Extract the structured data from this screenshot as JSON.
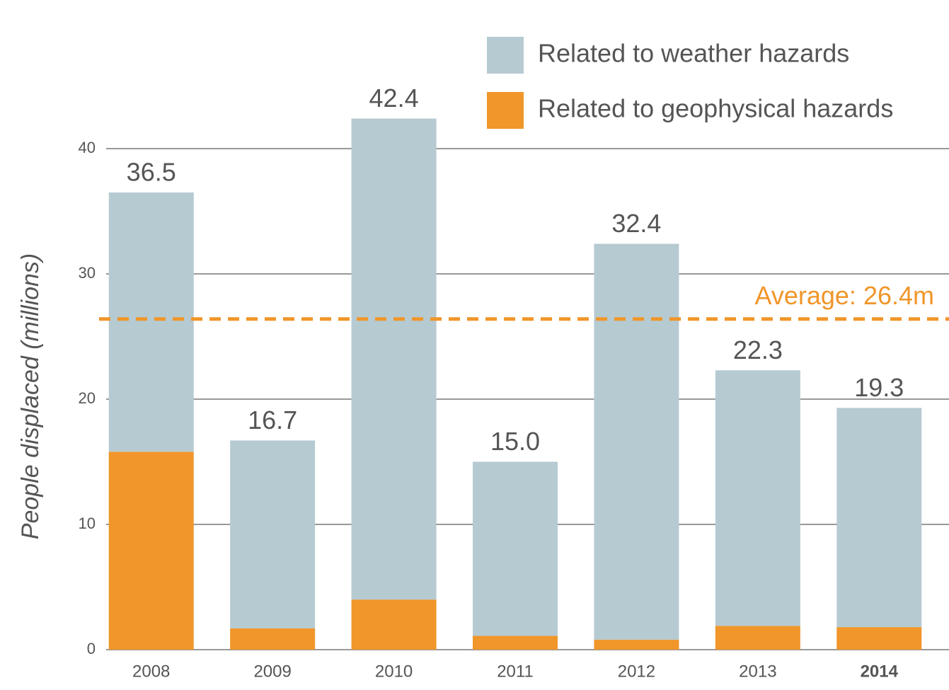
{
  "chart_data": {
    "type": "stacked-bar",
    "y_label": "People displaced (millions)",
    "categories": [
      "2008",
      "2009",
      "2010",
      "2011",
      "2012",
      "2013",
      "2014"
    ],
    "series": [
      {
        "name": "Related to weather hazards",
        "color": "#b6cad2",
        "values": [
          20.7,
          15.0,
          38.4,
          13.9,
          31.6,
          20.4,
          17.5
        ]
      },
      {
        "name": "Related to geophysical hazards",
        "color": "#f0962a",
        "values": [
          15.8,
          1.7,
          4.0,
          1.1,
          0.8,
          1.9,
          1.8
        ]
      }
    ],
    "totals": [
      36.5,
      16.7,
      42.4,
      15,
      32.4,
      22.3,
      19.3
    ],
    "total_labels": [
      "36.5",
      "16.7",
      "42.4",
      "15.0",
      "32.4",
      "22.3",
      "19.3"
    ],
    "average": 26.4,
    "average_label": "Average: 26.4m",
    "average_color": "#f0962a",
    "ylim": [
      0,
      50
    ],
    "yticks": [
      0,
      10,
      20,
      30,
      40
    ],
    "grid": true,
    "legend": "top-right"
  }
}
